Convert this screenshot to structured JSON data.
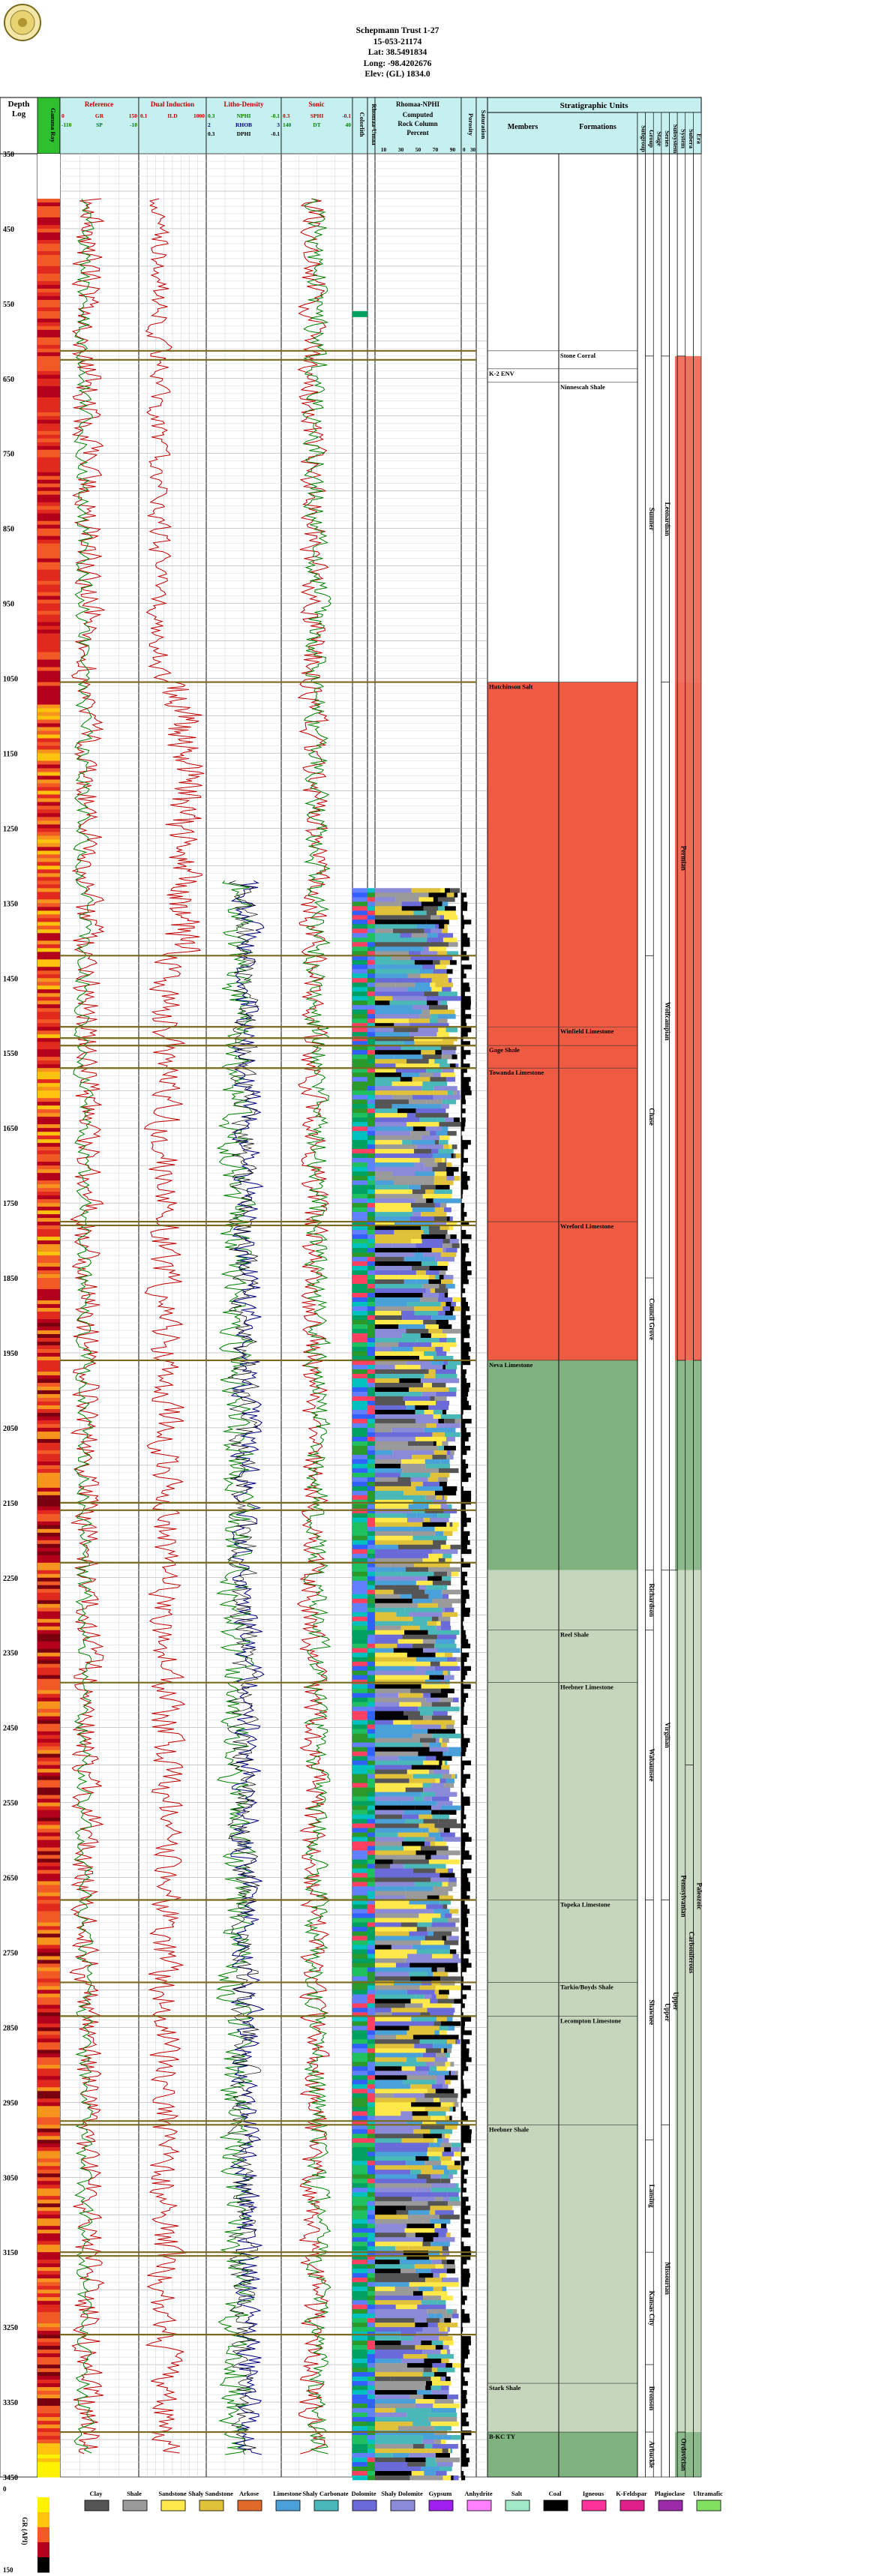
{
  "well": {
    "name": "Schepmann Trust 1-27",
    "api": "15-053-21174",
    "lat": "Lat: 38.5491834",
    "long": "Long: -98.4202676",
    "elev": "Elev: (GL) 1834.0"
  },
  "headers": {
    "depth_log": [
      "Depth",
      "Log"
    ],
    "gamma": "Gamma Ray",
    "reference": "Reference",
    "dual_induction": "Dual Induction",
    "litho_density": "Litho-Density",
    "sonic": "Sonic",
    "colorlith": "Colorlith",
    "rhomaa_umaa": "Rhomaa-Umaa",
    "rhomaa_nphi": "Rhomaa-NPHI",
    "computed_rock": [
      "Computed",
      "Rock Column",
      "Percent"
    ],
    "porosity": "Porosity",
    "saturation": "Saturation",
    "strat_units": "Stratigraphic Units",
    "members": "Members",
    "formations": "Formations",
    "rank_cols": [
      "Subgroup",
      "Group",
      "Stage",
      "Series",
      "Subsystem",
      "System",
      "Subera",
      "Era"
    ]
  },
  "curves": {
    "reference": [
      {
        "name": "GR",
        "left": "0",
        "right": "150",
        "unit": "API",
        "color": "#c00000"
      },
      {
        "name": "SP",
        "left": "-110",
        "right": "-10",
        "unit": "MV",
        "color": "#008000"
      }
    ],
    "induction": [
      {
        "name": "ILD",
        "left": "0.1",
        "right": "1000",
        "unit": "OHM-M",
        "color": "#c00000"
      }
    ],
    "density": [
      {
        "name": "NPHI",
        "left": "0.3",
        "right": "-0.1",
        "color": "#008000"
      },
      {
        "name": "RHOB",
        "left": "2",
        "right": "3",
        "color": "#000080"
      },
      {
        "name": "DPHI",
        "left": "0.3",
        "right": "-0.1",
        "color": "#000000"
      }
    ],
    "sonic": [
      {
        "name": "SPHI",
        "left": "0.3",
        "right": "-0.1",
        "color": "#c00000"
      },
      {
        "name": "DT",
        "left": "140",
        "right": "40",
        "color": "#008000"
      }
    ],
    "percent_ticks": [
      "10",
      "30",
      "50",
      "70",
      "90"
    ],
    "por_ticks": [
      "0",
      "30"
    ]
  },
  "depth_ticks": [
    350,
    450,
    550,
    650,
    750,
    850,
    950,
    1050,
    1150,
    1250,
    1350,
    1450,
    1550,
    1650,
    1750,
    1850,
    1950,
    2050,
    2150,
    2250,
    2350,
    2450,
    2550,
    2650,
    2750,
    2850,
    2950,
    3050,
    3150,
    3250,
    3350,
    3450
  ],
  "depth_range": [
    350,
    3450
  ],
  "tops": [
    {
      "depth": 613,
      "name": "Stone Corral",
      "col": "formation"
    },
    {
      "depth": 655,
      "name": "Ninnescah Shale",
      "col": "formation"
    },
    {
      "depth": 637,
      "name": "K-2 ENV",
      "col": "marker"
    },
    {
      "depth": 1055,
      "name": "Hutchinson Salt",
      "col": "member"
    },
    {
      "depth": 1515,
      "name": "Winfield Limestone",
      "col": "formation"
    },
    {
      "depth": 1540,
      "name": "Gage Shale",
      "col": "member"
    },
    {
      "depth": 1570,
      "name": "Towanda Limestone",
      "col": "member"
    },
    {
      "depth": 1775,
      "name": "Wreford Limestone",
      "col": "formation"
    },
    {
      "depth": 1960,
      "name": "Neva Limestone",
      "col": "member"
    },
    {
      "depth": 2320,
      "name": "Reel Shale",
      "col": "formation"
    },
    {
      "depth": 2390,
      "name": "Heebner Limestone",
      "col": "formation"
    },
    {
      "depth": 2680,
      "name": "Topeka Limestone",
      "col": "formation"
    },
    {
      "depth": 2790,
      "name": "Tarkio/Boyds Shale",
      "col": "formation"
    },
    {
      "depth": 2835,
      "name": "Lecompton Limestone",
      "col": "formation"
    },
    {
      "depth": 2980,
      "name": "Heebner Shale",
      "col": "member"
    },
    {
      "depth": 3325,
      "name": "Stark Shale",
      "col": "member"
    },
    {
      "depth": 3390,
      "name": "B-KC TY",
      "col": "member"
    }
  ],
  "units": {
    "groups": [
      {
        "from": 620,
        "to": 1055,
        "name": "Sumner"
      },
      {
        "from": 1420,
        "to": 1850,
        "name": "Chase"
      },
      {
        "from": 1850,
        "to": 1960,
        "name": "Council Grove"
      },
      {
        "from": 2240,
        "to": 2320,
        "name": "Richardson"
      },
      {
        "from": 2320,
        "to": 2680,
        "name": "Wabaunsee"
      },
      {
        "from": 2680,
        "to": 2980,
        "name": "Shawnee"
      },
      {
        "from": 3000,
        "to": 3150,
        "name": "Lansing"
      },
      {
        "from": 3150,
        "to": 3300,
        "name": "Kansas City"
      },
      {
        "from": 3300,
        "to": 3390,
        "name": "Bronson"
      },
      {
        "from": 3390,
        "to": 3450,
        "name": "Arbuckle"
      }
    ],
    "series": [
      {
        "from": 620,
        "to": 1055,
        "name": "Leonardian"
      },
      {
        "from": 1055,
        "to": 1960,
        "name": "Wolfcampian"
      },
      {
        "from": 2240,
        "to": 2680,
        "name": "Virgilian"
      },
      {
        "from": 2680,
        "to": 2980,
        "name": "Upper"
      },
      {
        "from": 2980,
        "to": 3390,
        "name": "Missourian"
      }
    ],
    "systems": [
      {
        "from": 620,
        "to": 1960,
        "name": "Permian"
      },
      {
        "from": 1960,
        "to": 3390,
        "name": "Pennsylvanian"
      },
      {
        "from": 3390,
        "to": 3450,
        "name": "Ordovician"
      }
    ],
    "subsystem": [
      {
        "from": 2240,
        "to": 3390,
        "name": "Upper"
      }
    ],
    "era": [
      {
        "from": 1960,
        "to": 3390,
        "name": "Paleozoic"
      }
    ],
    "carbon": [
      {
        "from": 2500,
        "to": 3000,
        "name": "Carboniferous"
      }
    ]
  },
  "strat_fills": [
    {
      "from": 1055,
      "to": 1960,
      "color": "#ef5a43"
    },
    {
      "from": 1960,
      "to": 2240,
      "color": "#7fb27f"
    },
    {
      "from": 2240,
      "to": 3390,
      "color": "#c5d6bd"
    },
    {
      "from": 3390,
      "to": 3450,
      "color": "#7fb27f"
    }
  ],
  "legend": {
    "scale_label": "GR (API)",
    "scale_ticks": [
      "0",
      "150"
    ],
    "items": [
      {
        "label": "Clay",
        "color": "#555555"
      },
      {
        "label": "Shale",
        "color": "#9a9a9a"
      },
      {
        "label": "Sandstone",
        "color": "#ffe84a"
      },
      {
        "label": "Shaly Sandstone",
        "color": "#e0c23a"
      },
      {
        "label": "Arkose",
        "color": "#e06a2a"
      },
      {
        "label": "Limestone",
        "color": "#4aa0d8"
      },
      {
        "label": "Shaly Carbonate",
        "color": "#4ab8b8"
      },
      {
        "label": "Dolomite",
        "color": "#6a6ad8"
      },
      {
        "label": "Shaly Dolomite",
        "color": "#8a8ad8"
      },
      {
        "label": "Gypsum",
        "color": "#a020f0"
      },
      {
        "label": "Anhydrite",
        "color": "#ff80ff"
      },
      {
        "label": "Salt",
        "color": "#a0e8c8"
      },
      {
        "label": "Coal",
        "color": "#000000"
      },
      {
        "label": "Igneous",
        "color": "#ff3399"
      },
      {
        "label": "K-Feldspar",
        "color": "#e0208a"
      },
      {
        "label": "Plagioclase",
        "color": "#9a2aa8"
      },
      {
        "label": "Ultramafic",
        "color": "#80e060"
      }
    ]
  }
}
